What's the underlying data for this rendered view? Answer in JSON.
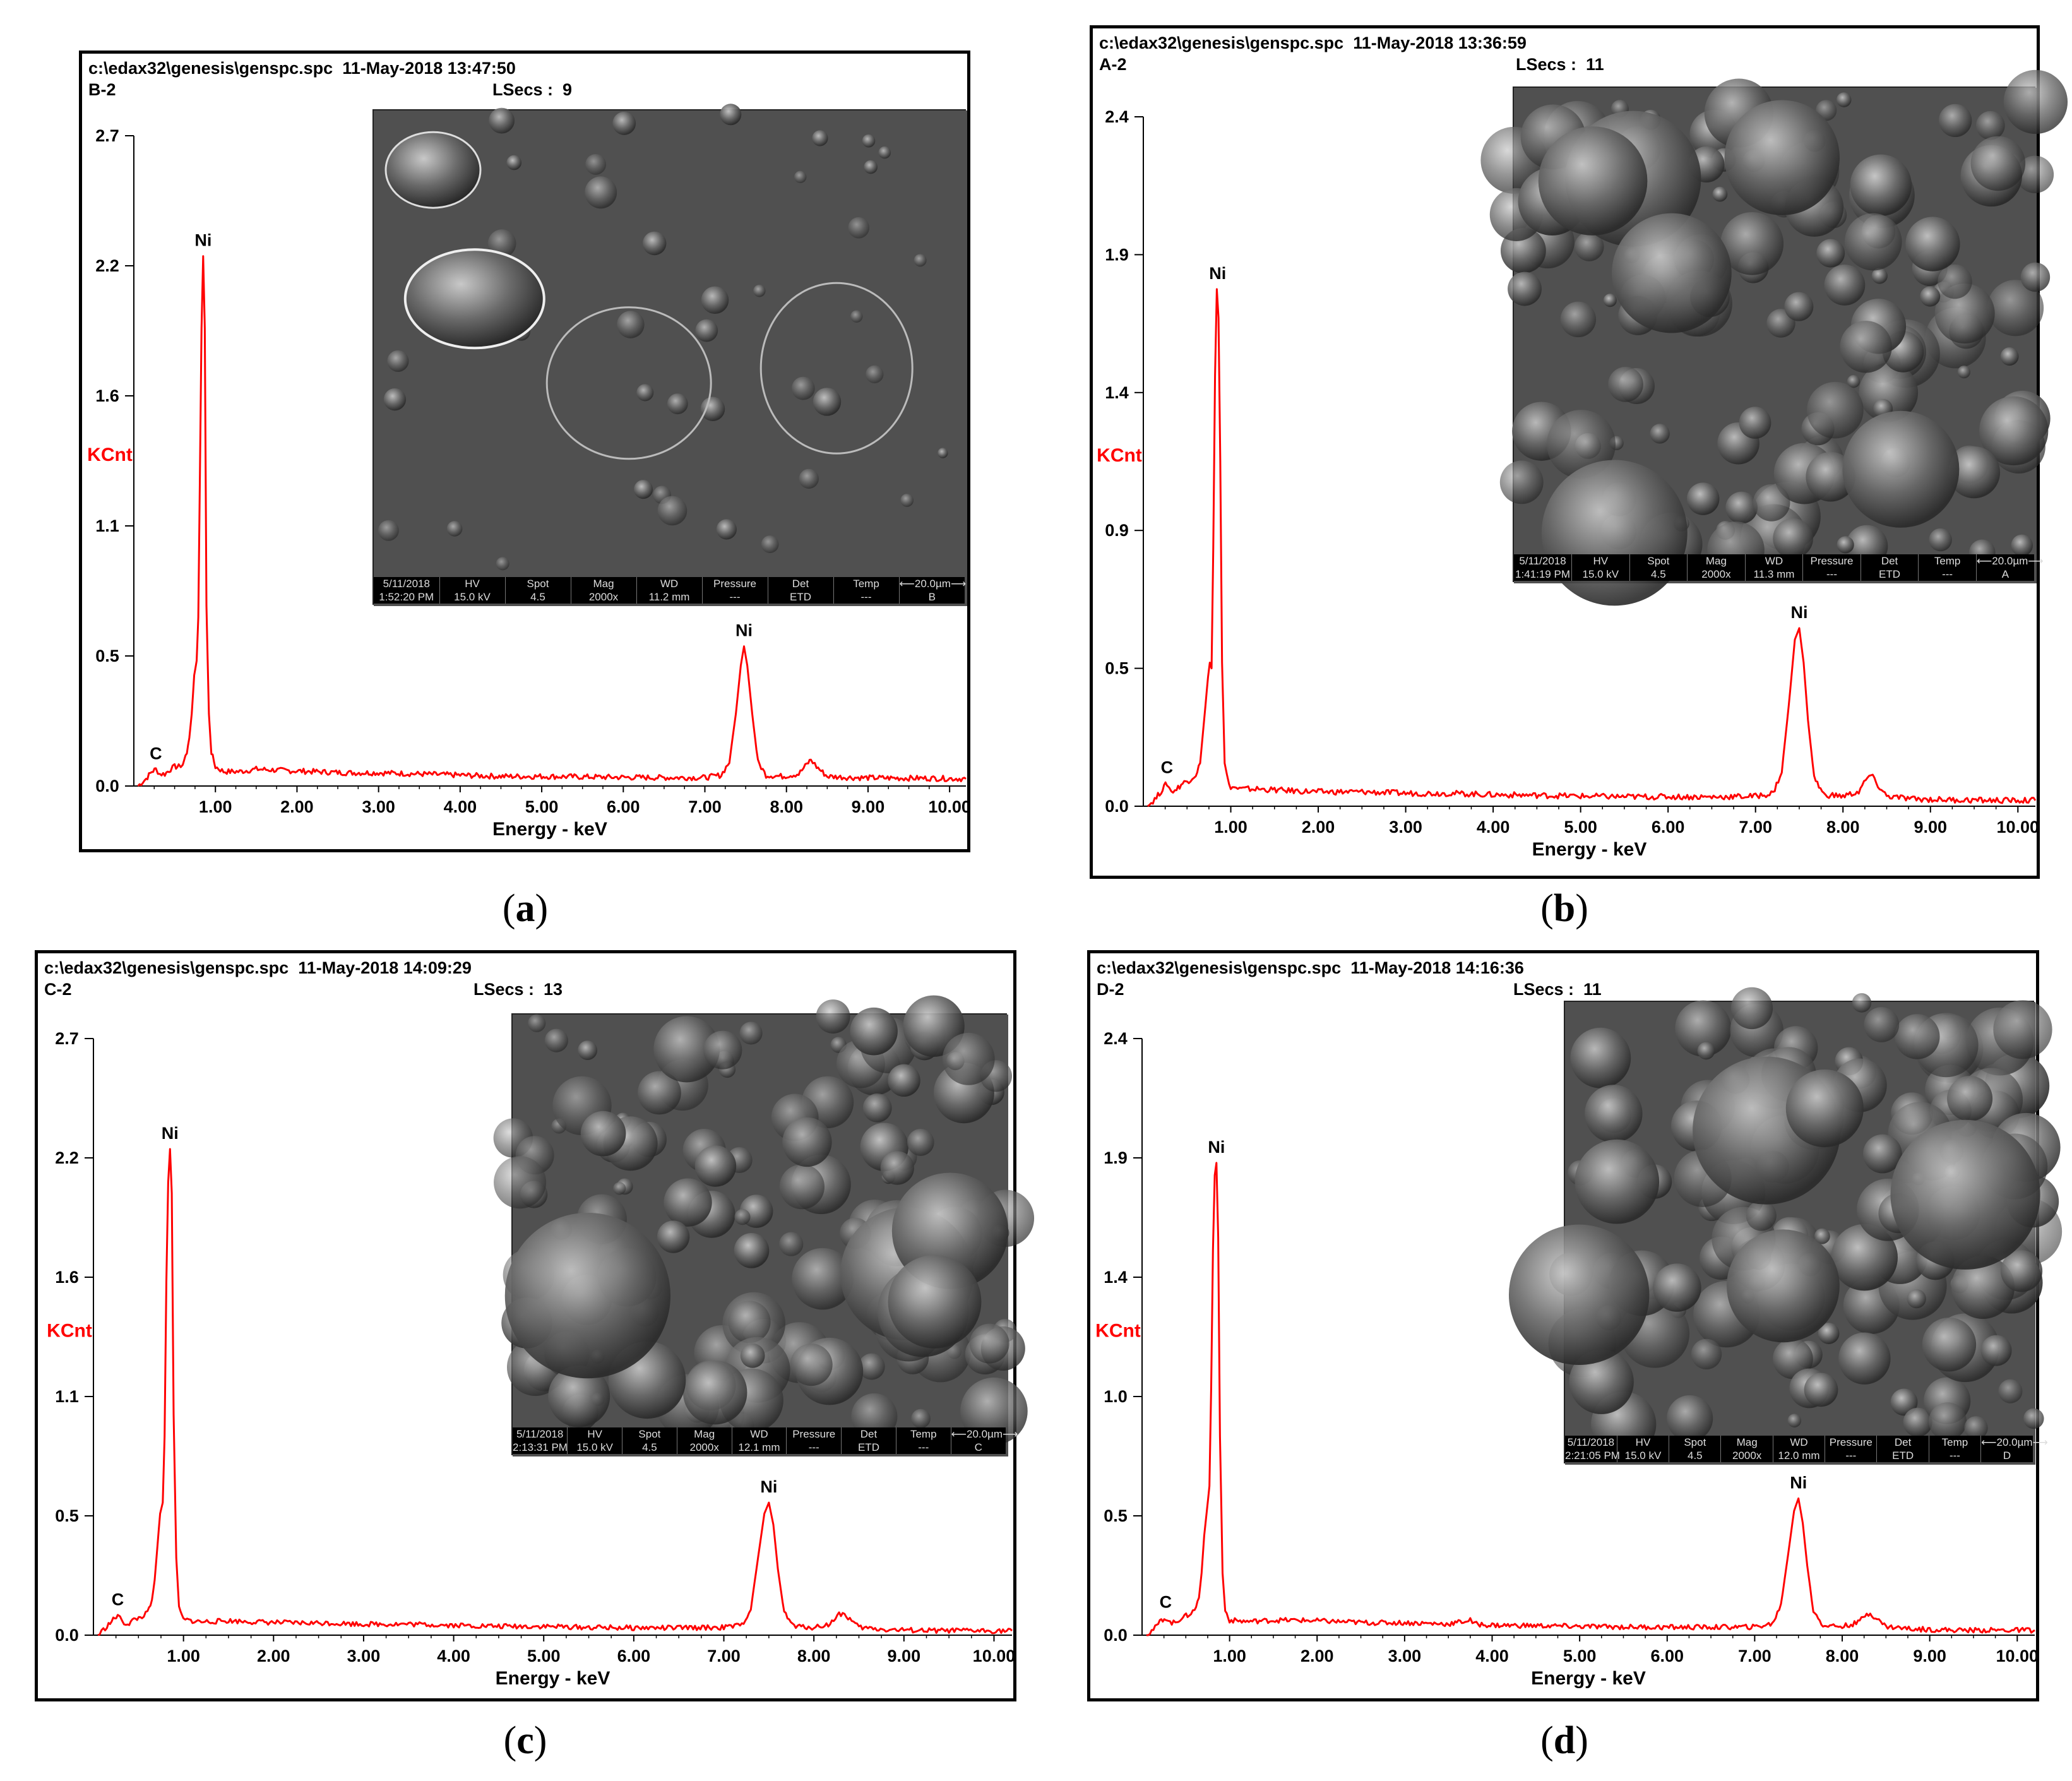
{
  "colors": {
    "spectrum": "#ff0000",
    "axis": "#000000",
    "ylabel": "#ff0000",
    "frame": "#000000"
  },
  "chart_data": [
    {
      "type": "line",
      "panel_label": "a",
      "file_line": "c:\\edax32\\genesis\\genspc.spc  11-May-2018 13:47:50",
      "sample": "B-2",
      "lsecs": "LSecs :  9",
      "ylabel": "KCnt",
      "xlabel": "Energy - keV",
      "xlim": [
        0,
        10.2
      ],
      "ylim": [
        0,
        2.7
      ],
      "yticks": [
        "0.0",
        "0.5",
        "1.1",
        "1.6",
        "2.2",
        "2.7"
      ],
      "xticks": [
        "1.00",
        "2.00",
        "3.00",
        "4.00",
        "5.00",
        "6.00",
        "7.00",
        "8.00",
        "9.00",
        "10.00"
      ],
      "peaks": [
        {
          "label": "C",
          "x": 0.27,
          "y": 0.07
        },
        {
          "label": "Ni",
          "x": 0.85,
          "y": 2.2
        },
        {
          "label": "Ni",
          "x": 7.48,
          "y": 0.58
        }
      ],
      "spectrum": [
        [
          0.05,
          0.0
        ],
        [
          0.15,
          0.03
        ],
        [
          0.22,
          0.06
        ],
        [
          0.27,
          0.07
        ],
        [
          0.32,
          0.05
        ],
        [
          0.38,
          0.05
        ],
        [
          0.45,
          0.07
        ],
        [
          0.5,
          0.08
        ],
        [
          0.55,
          0.08
        ],
        [
          0.6,
          0.09
        ],
        [
          0.65,
          0.14
        ],
        [
          0.68,
          0.2
        ],
        [
          0.71,
          0.3
        ],
        [
          0.74,
          0.46
        ],
        [
          0.77,
          0.52
        ],
        [
          0.79,
          0.7
        ],
        [
          0.81,
          1.3
        ],
        [
          0.83,
          1.9
        ],
        [
          0.85,
          2.2
        ],
        [
          0.87,
          1.9
        ],
        [
          0.89,
          0.75
        ],
        [
          0.92,
          0.3
        ],
        [
          0.95,
          0.14
        ],
        [
          1.0,
          0.08
        ],
        [
          1.1,
          0.06
        ],
        [
          1.3,
          0.06
        ],
        [
          1.5,
          0.07
        ],
        [
          1.8,
          0.065
        ],
        [
          2.2,
          0.06
        ],
        [
          2.6,
          0.055
        ],
        [
          3.0,
          0.055
        ],
        [
          3.5,
          0.05
        ],
        [
          4.0,
          0.045
        ],
        [
          4.5,
          0.04
        ],
        [
          5.0,
          0.04
        ],
        [
          5.5,
          0.038
        ],
        [
          6.0,
          0.036
        ],
        [
          6.5,
          0.035
        ],
        [
          7.0,
          0.035
        ],
        [
          7.2,
          0.045
        ],
        [
          7.3,
          0.1
        ],
        [
          7.38,
          0.3
        ],
        [
          7.44,
          0.5
        ],
        [
          7.48,
          0.58
        ],
        [
          7.52,
          0.5
        ],
        [
          7.58,
          0.3
        ],
        [
          7.65,
          0.1
        ],
        [
          7.75,
          0.045
        ],
        [
          7.95,
          0.04
        ],
        [
          8.15,
          0.05
        ],
        [
          8.25,
          0.09
        ],
        [
          8.3,
          0.11
        ],
        [
          8.37,
          0.08
        ],
        [
          8.5,
          0.04
        ],
        [
          8.8,
          0.035
        ],
        [
          9.3,
          0.033
        ],
        [
          9.8,
          0.032
        ],
        [
          10.2,
          0.03
        ]
      ],
      "sem_info": {
        "headers": [
          "5/11/2018",
          "HV",
          "Spot",
          "Mag",
          "WD",
          "Pressure",
          "Det",
          "Temp",
          "⟵20.0µm⟶"
        ],
        "values": [
          "1:52:20 PM",
          "15.0 kV",
          "4.5",
          "2000x",
          "11.2 mm",
          "---",
          "ETD",
          "---",
          "B"
        ]
      }
    },
    {
      "type": "line",
      "panel_label": "b",
      "file_line": "c:\\edax32\\genesis\\genspc.spc  11-May-2018 13:36:59",
      "sample": "A-2",
      "lsecs": "LSecs :  11",
      "ylabel": "KCnt",
      "xlabel": "Energy - keV",
      "xlim": [
        0,
        10.2
      ],
      "ylim": [
        0,
        2.4
      ],
      "yticks": [
        "0.0",
        "0.5",
        "0.9",
        "1.4",
        "1.9",
        "2.4"
      ],
      "xticks": [
        "1.00",
        "2.00",
        "3.00",
        "4.00",
        "5.00",
        "6.00",
        "7.00",
        "8.00",
        "9.00",
        "10.00"
      ],
      "peaks": [
        {
          "label": "C",
          "x": 0.27,
          "y": 0.08
        },
        {
          "label": "Ni",
          "x": 0.85,
          "y": 1.8
        },
        {
          "label": "Ni",
          "x": 7.5,
          "y": 0.62
        }
      ],
      "spectrum": [
        [
          0.05,
          0.0
        ],
        [
          0.15,
          0.03
        ],
        [
          0.22,
          0.06
        ],
        [
          0.27,
          0.08
        ],
        [
          0.32,
          0.05
        ],
        [
          0.38,
          0.06
        ],
        [
          0.45,
          0.08
        ],
        [
          0.52,
          0.09
        ],
        [
          0.6,
          0.11
        ],
        [
          0.65,
          0.15
        ],
        [
          0.68,
          0.25
        ],
        [
          0.71,
          0.35
        ],
        [
          0.74,
          0.45
        ],
        [
          0.76,
          0.5
        ],
        [
          0.78,
          0.48
        ],
        [
          0.8,
          0.9
        ],
        [
          0.82,
          1.5
        ],
        [
          0.84,
          1.8
        ],
        [
          0.86,
          1.7
        ],
        [
          0.88,
          1.2
        ],
        [
          0.9,
          0.5
        ],
        [
          0.93,
          0.15
        ],
        [
          0.98,
          0.07
        ],
        [
          1.1,
          0.06
        ],
        [
          1.3,
          0.06
        ],
        [
          1.6,
          0.055
        ],
        [
          2.0,
          0.05
        ],
        [
          2.5,
          0.05
        ],
        [
          3.0,
          0.045
        ],
        [
          3.5,
          0.045
        ],
        [
          4.0,
          0.04
        ],
        [
          4.5,
          0.038
        ],
        [
          5.0,
          0.035
        ],
        [
          5.5,
          0.033
        ],
        [
          6.0,
          0.033
        ],
        [
          6.5,
          0.032
        ],
        [
          7.0,
          0.035
        ],
        [
          7.2,
          0.045
        ],
        [
          7.3,
          0.12
        ],
        [
          7.38,
          0.35
        ],
        [
          7.45,
          0.58
        ],
        [
          7.5,
          0.62
        ],
        [
          7.55,
          0.5
        ],
        [
          7.6,
          0.3
        ],
        [
          7.67,
          0.1
        ],
        [
          7.78,
          0.04
        ],
        [
          8.0,
          0.035
        ],
        [
          8.18,
          0.05
        ],
        [
          8.26,
          0.09
        ],
        [
          8.32,
          0.11
        ],
        [
          8.38,
          0.08
        ],
        [
          8.5,
          0.035
        ],
        [
          8.8,
          0.025
        ],
        [
          9.3,
          0.022
        ],
        [
          9.8,
          0.02
        ],
        [
          10.2,
          0.02
        ]
      ],
      "sem_info": {
        "headers": [
          "5/11/2018",
          "HV",
          "Spot",
          "Mag",
          "WD",
          "Pressure",
          "Det",
          "Temp",
          "⟵20.0µm⟶"
        ],
        "values": [
          "1:41:19 PM",
          "15.0 kV",
          "4.5",
          "2000x",
          "11.3 mm",
          "---",
          "ETD",
          "---",
          "A"
        ]
      }
    },
    {
      "type": "line",
      "panel_label": "c",
      "file_line": "c:\\edax32\\genesis\\genspc.spc  11-May-2018 14:09:29",
      "sample": "C-2",
      "lsecs": "LSecs :  13",
      "ylabel": "KCnt",
      "xlabel": "Energy - keV",
      "xlim": [
        0,
        10.2
      ],
      "ylim": [
        0,
        2.7
      ],
      "yticks": [
        "0.0",
        "0.5",
        "1.1",
        "1.6",
        "2.2",
        "2.7"
      ],
      "xticks": [
        "1.00",
        "2.00",
        "3.00",
        "4.00",
        "5.00",
        "6.00",
        "7.00",
        "8.00",
        "9.00",
        "10.00"
      ],
      "peaks": [
        {
          "label": "C",
          "x": 0.27,
          "y": 0.09
        },
        {
          "label": "Ni",
          "x": 0.85,
          "y": 2.2
        },
        {
          "label": "Ni",
          "x": 7.5,
          "y": 0.6
        }
      ],
      "spectrum": [
        [
          0.05,
          0.0
        ],
        [
          0.15,
          0.04
        ],
        [
          0.22,
          0.07
        ],
        [
          0.27,
          0.09
        ],
        [
          0.32,
          0.06
        ],
        [
          0.38,
          0.05
        ],
        [
          0.45,
          0.07
        ],
        [
          0.52,
          0.08
        ],
        [
          0.6,
          0.1
        ],
        [
          0.65,
          0.16
        ],
        [
          0.68,
          0.25
        ],
        [
          0.71,
          0.4
        ],
        [
          0.74,
          0.55
        ],
        [
          0.77,
          0.6
        ],
        [
          0.79,
          0.9
        ],
        [
          0.81,
          1.6
        ],
        [
          0.83,
          2.05
        ],
        [
          0.85,
          2.2
        ],
        [
          0.87,
          2.0
        ],
        [
          0.89,
          1.0
        ],
        [
          0.92,
          0.35
        ],
        [
          0.95,
          0.12
        ],
        [
          1.0,
          0.07
        ],
        [
          1.2,
          0.06
        ],
        [
          1.5,
          0.065
        ],
        [
          1.8,
          0.06
        ],
        [
          2.2,
          0.055
        ],
        [
          2.6,
          0.055
        ],
        [
          3.0,
          0.05
        ],
        [
          3.5,
          0.05
        ],
        [
          4.0,
          0.045
        ],
        [
          4.5,
          0.04
        ],
        [
          5.0,
          0.04
        ],
        [
          5.5,
          0.035
        ],
        [
          6.0,
          0.033
        ],
        [
          6.5,
          0.033
        ],
        [
          7.0,
          0.035
        ],
        [
          7.2,
          0.045
        ],
        [
          7.3,
          0.12
        ],
        [
          7.38,
          0.35
        ],
        [
          7.45,
          0.55
        ],
        [
          7.5,
          0.6
        ],
        [
          7.55,
          0.5
        ],
        [
          7.6,
          0.3
        ],
        [
          7.67,
          0.1
        ],
        [
          7.78,
          0.04
        ],
        [
          8.0,
          0.035
        ],
        [
          8.18,
          0.05
        ],
        [
          8.26,
          0.09
        ],
        [
          8.32,
          0.1
        ],
        [
          8.38,
          0.08
        ],
        [
          8.5,
          0.035
        ],
        [
          8.8,
          0.025
        ],
        [
          9.3,
          0.02
        ],
        [
          9.8,
          0.02
        ],
        [
          10.2,
          0.02
        ]
      ],
      "sem_info": {
        "headers": [
          "5/11/2018",
          "HV",
          "Spot",
          "Mag",
          "WD",
          "Pressure",
          "Det",
          "Temp",
          "⟵20.0µm⟶"
        ],
        "values": [
          "2:13:31 PM",
          "15.0 kV",
          "4.5",
          "2000x",
          "12.1 mm",
          "---",
          "ETD",
          "---",
          "C"
        ]
      }
    },
    {
      "type": "line",
      "panel_label": "d",
      "file_line": "c:\\edax32\\genesis\\genspc.spc  11-May-2018 14:16:36",
      "sample": "D-2",
      "lsecs": "LSecs :  11",
      "ylabel": "KCnt",
      "xlabel": "Energy - keV",
      "xlim": [
        0,
        10.2
      ],
      "ylim": [
        0,
        2.4
      ],
      "yticks": [
        "0.0",
        "0.5",
        "1.0",
        "1.4",
        "1.9",
        "2.4"
      ],
      "xticks": [
        "1.00",
        "2.00",
        "3.00",
        "4.00",
        "5.00",
        "6.00",
        "7.00",
        "8.00",
        "9.00",
        "10.00"
      ],
      "peaks": [
        {
          "label": "C",
          "x": 0.27,
          "y": 0.07
        },
        {
          "label": "Ni",
          "x": 0.85,
          "y": 1.9
        },
        {
          "label": "Ni",
          "x": 7.5,
          "y": 0.55
        }
      ],
      "spectrum": [
        [
          0.05,
          0.0
        ],
        [
          0.15,
          0.03
        ],
        [
          0.22,
          0.06
        ],
        [
          0.27,
          0.07
        ],
        [
          0.32,
          0.05
        ],
        [
          0.38,
          0.05
        ],
        [
          0.45,
          0.07
        ],
        [
          0.52,
          0.08
        ],
        [
          0.6,
          0.1
        ],
        [
          0.65,
          0.15
        ],
        [
          0.68,
          0.25
        ],
        [
          0.71,
          0.4
        ],
        [
          0.74,
          0.5
        ],
        [
          0.77,
          0.6
        ],
        [
          0.79,
          1.0
        ],
        [
          0.81,
          1.55
        ],
        [
          0.83,
          1.85
        ],
        [
          0.85,
          1.9
        ],
        [
          0.87,
          1.6
        ],
        [
          0.89,
          0.8
        ],
        [
          0.92,
          0.25
        ],
        [
          0.95,
          0.1
        ],
        [
          1.0,
          0.06
        ],
        [
          1.2,
          0.055
        ],
        [
          1.5,
          0.06
        ],
        [
          1.8,
          0.06
        ],
        [
          2.2,
          0.055
        ],
        [
          2.6,
          0.05
        ],
        [
          3.0,
          0.05
        ],
        [
          3.5,
          0.045
        ],
        [
          3.75,
          0.06
        ],
        [
          3.8,
          0.045
        ],
        [
          4.0,
          0.04
        ],
        [
          4.5,
          0.038
        ],
        [
          5.0,
          0.035
        ],
        [
          5.5,
          0.033
        ],
        [
          6.0,
          0.032
        ],
        [
          6.5,
          0.032
        ],
        [
          7.0,
          0.033
        ],
        [
          7.2,
          0.045
        ],
        [
          7.3,
          0.12
        ],
        [
          7.38,
          0.32
        ],
        [
          7.45,
          0.5
        ],
        [
          7.5,
          0.55
        ],
        [
          7.55,
          0.45
        ],
        [
          7.6,
          0.28
        ],
        [
          7.67,
          0.1
        ],
        [
          7.78,
          0.04
        ],
        [
          8.0,
          0.035
        ],
        [
          8.18,
          0.05
        ],
        [
          8.26,
          0.08
        ],
        [
          8.32,
          0.09
        ],
        [
          8.38,
          0.07
        ],
        [
          8.5,
          0.035
        ],
        [
          8.8,
          0.025
        ],
        [
          9.3,
          0.02
        ],
        [
          9.8,
          0.02
        ],
        [
          10.2,
          0.02
        ]
      ],
      "sem_info": {
        "headers": [
          "5/11/2018",
          "HV",
          "Spot",
          "Mag",
          "WD",
          "Pressure",
          "Det",
          "Temp",
          "⟵20.0µm⟶"
        ],
        "values": [
          "2:21:05 PM",
          "15.0 kV",
          "4.5",
          "2000x",
          "12.0 mm",
          "---",
          "ETD",
          "---",
          "D"
        ]
      }
    }
  ]
}
